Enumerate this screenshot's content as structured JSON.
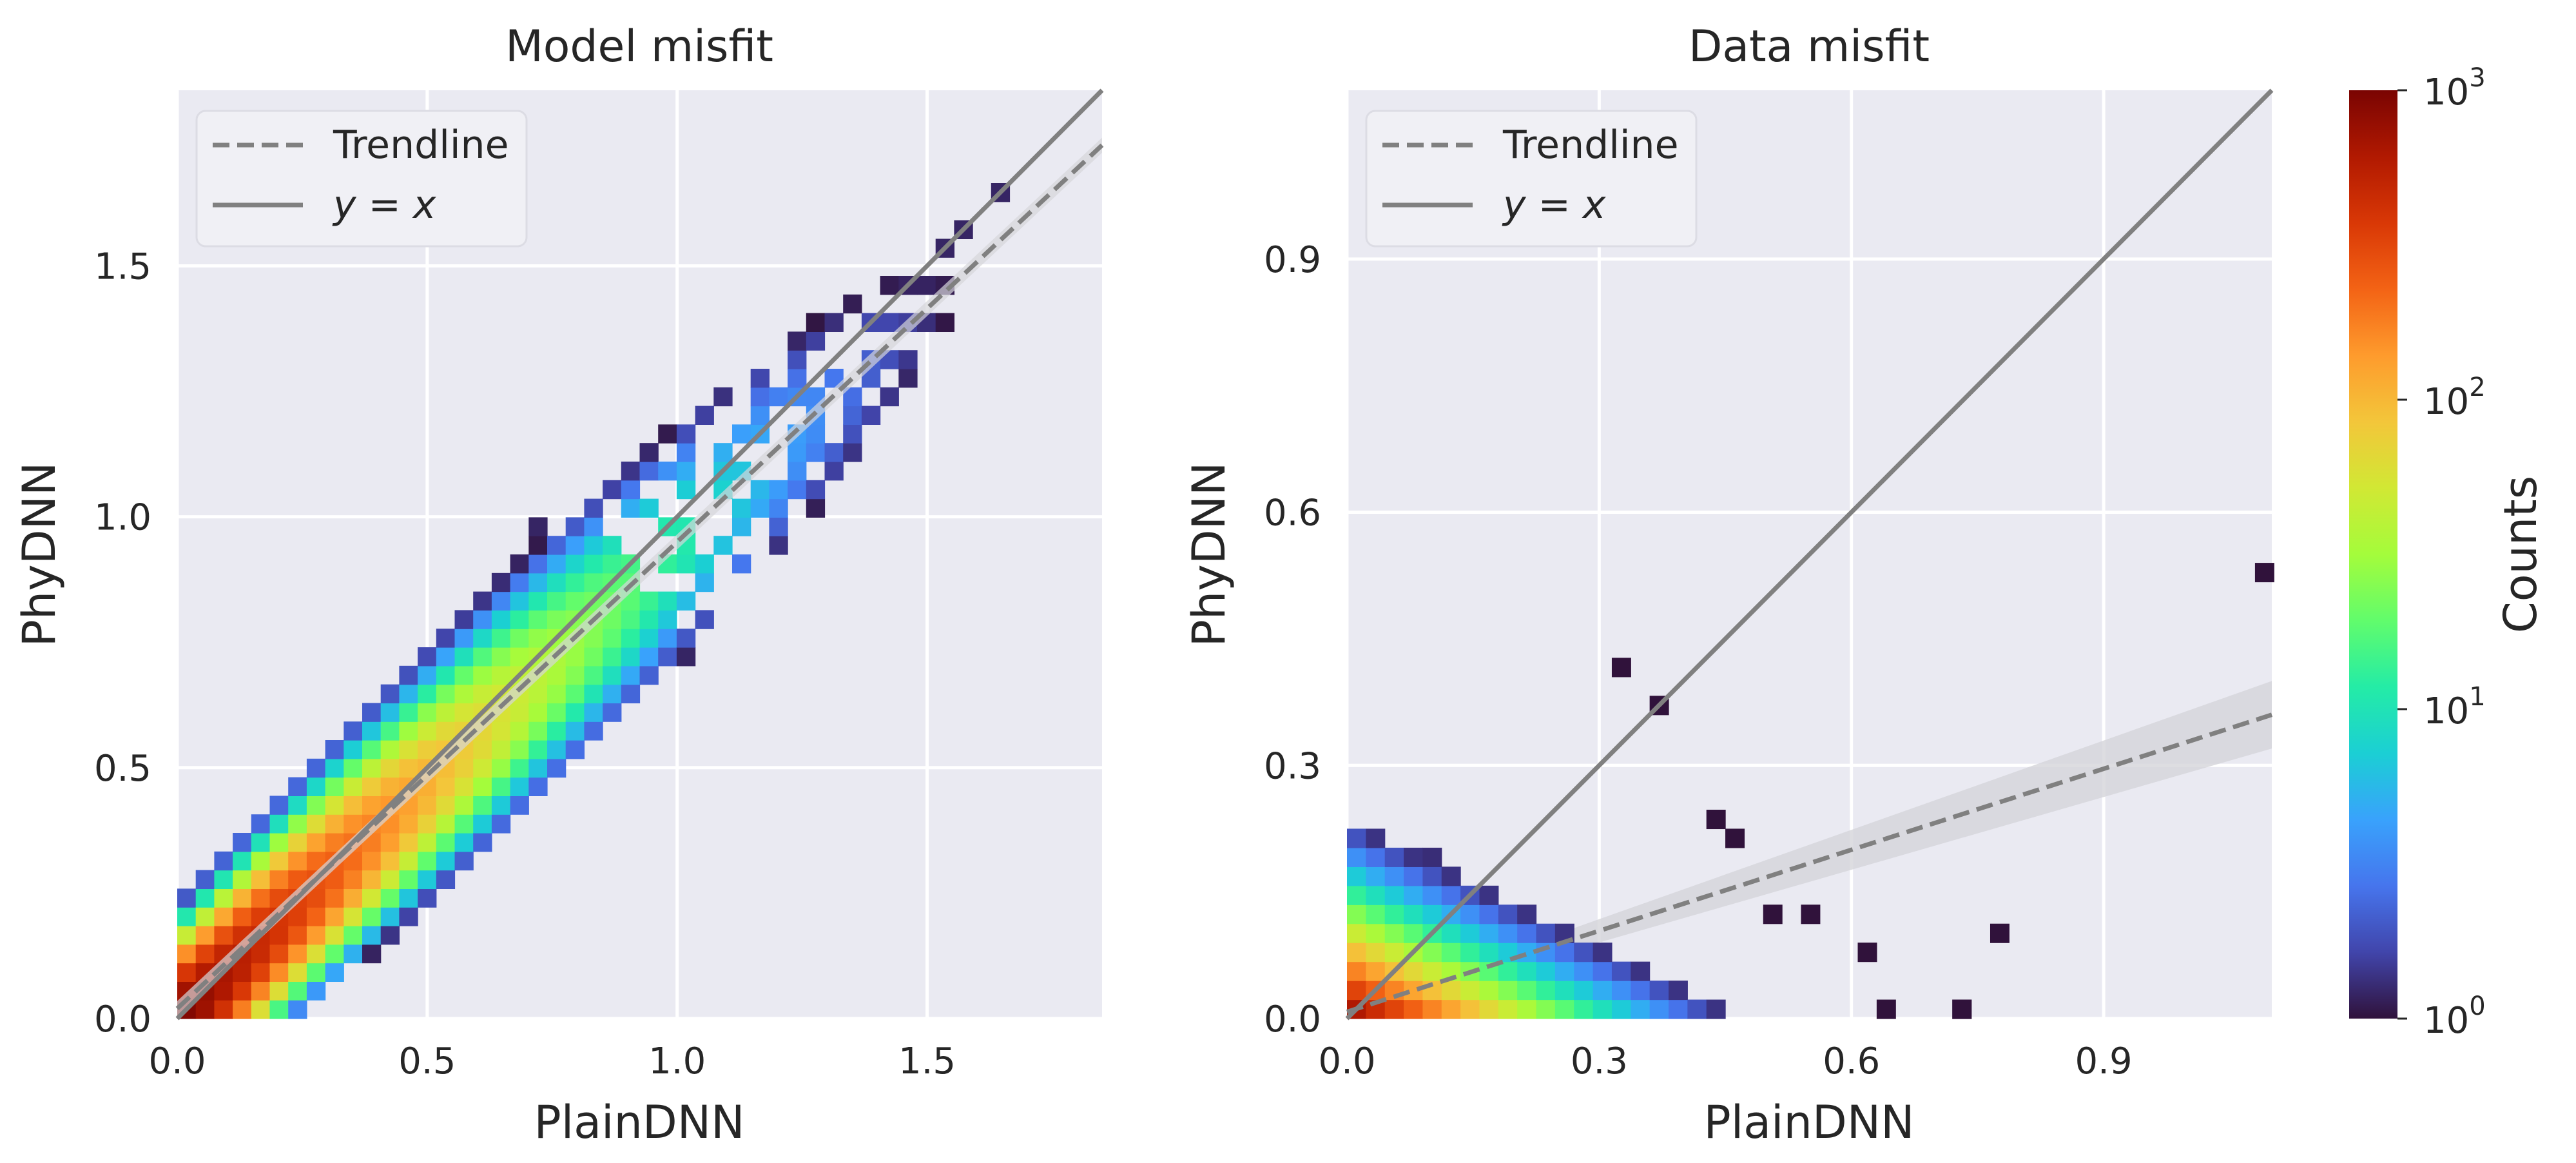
{
  "colors": {
    "panel_bg": "#eaeaf2",
    "grid": "#ffffff",
    "line": "#808080",
    "band": "#d5d5da",
    "colormap": [
      "#30123b",
      "#4145ab",
      "#4675ed",
      "#39a2fc",
      "#1bcfd4",
      "#24eca6",
      "#61fc6c",
      "#a4fc3b",
      "#d1e834",
      "#f3c63a",
      "#fe9b2d",
      "#f36315",
      "#d93806",
      "#b11901",
      "#7a0402"
    ]
  },
  "chart_data": [
    {
      "type": "heatmap",
      "title": "Model misfit",
      "xlabel": "PlainDNN",
      "ylabel": "PhyDNN",
      "xlim": [
        0,
        1.85
      ],
      "ylim": [
        0,
        1.85
      ],
      "xticks": [
        0.0,
        0.5,
        1.0,
        1.5
      ],
      "yticks": [
        0.0,
        0.5,
        1.0,
        1.5
      ],
      "xtick_labels": [
        "0.0",
        "0.5",
        "1.0",
        "1.5"
      ],
      "ytick_labels": [
        "0.0",
        "0.5",
        "1.0",
        "1.5"
      ],
      "bin_size": 0.037,
      "count_density": {
        "ridge_slope": 0.96,
        "peak_count": 1000,
        "decay_length": 0.22,
        "spread": 0.06
      },
      "trendline": {
        "slope": 0.93,
        "intercept": 0.02,
        "ci_halfwidth": 0.015
      },
      "identity_line": {
        "slope": 1.0,
        "intercept": 0.0
      },
      "legend": {
        "position": "upper-left",
        "entries": [
          "Trendline",
          "y = x"
        ]
      }
    },
    {
      "type": "heatmap",
      "title": "Data misfit",
      "xlabel": "PlainDNN",
      "ylabel": "PhyDNN",
      "xlim": [
        0,
        1.1
      ],
      "ylim": [
        0,
        1.1
      ],
      "xticks": [
        0.0,
        0.3,
        0.6,
        0.9
      ],
      "yticks": [
        0.0,
        0.3,
        0.6,
        0.9
      ],
      "xtick_labels": [
        "0.0",
        "0.3",
        "0.6",
        "0.9"
      ],
      "ytick_labels": [
        "0.0",
        "0.3",
        "0.6",
        "0.9"
      ],
      "bin_size": 0.0225,
      "count_density": {
        "peak_count": 1000,
        "x_scale": 0.07,
        "y_scale": 0.035
      },
      "outlier_cells": [
        [
          1.09,
          0.52
        ],
        [
          0.72,
          0.01
        ],
        [
          0.74,
          0.01
        ],
        [
          0.64,
          0.01
        ],
        [
          0.61,
          0.08
        ],
        [
          0.56,
          0.12
        ],
        [
          0.77,
          0.1
        ],
        [
          0.5,
          0.12
        ],
        [
          0.32,
          0.41
        ],
        [
          0.37,
          0.37
        ],
        [
          0.43,
          0.24
        ],
        [
          0.45,
          0.22
        ]
      ],
      "trendline": {
        "slope": 0.32,
        "intercept": 0.008,
        "ci_halfwidth_end": 0.04
      },
      "identity_line": {
        "slope": 1.0,
        "intercept": 0.0
      },
      "legend": {
        "position": "upper-left",
        "entries": [
          "Trendline",
          "y = x"
        ]
      }
    }
  ],
  "colorbar": {
    "label": "Counts",
    "scale": "log",
    "min": 1,
    "max": 1000,
    "ticks": [
      {
        "base": "10",
        "exp": "0"
      },
      {
        "base": "10",
        "exp": "1"
      },
      {
        "base": "10",
        "exp": "2"
      },
      {
        "base": "10",
        "exp": "3"
      }
    ]
  }
}
